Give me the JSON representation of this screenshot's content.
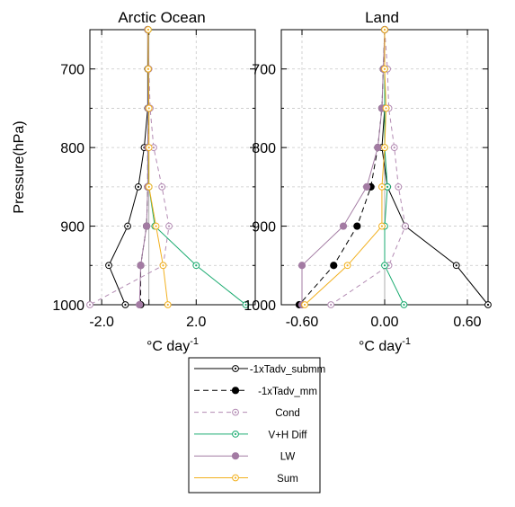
{
  "figure": {
    "ylabel": "Pressure(hPa)",
    "xlabel_base": "°C day",
    "xlabel_sup": "-1"
  },
  "chart_data": [
    {
      "type": "line",
      "title": "Arctic Ocean",
      "ylabel": "Pressure(hPa)",
      "xlabel": "°C day⁻¹",
      "y_inverted": true,
      "ylim": [
        1000,
        650
      ],
      "xlim": [
        -2.5,
        4.5
      ],
      "x_ticks": [
        -2.0,
        0.0,
        2.0
      ],
      "x_tick_labels": [
        "-2.0",
        "",
        "2.0"
      ],
      "y_ticks": [
        700,
        800,
        900,
        1000
      ],
      "y_tick_labels": [
        "700",
        "800",
        "900",
        "1000"
      ],
      "grid": true,
      "pressure": [
        650,
        700,
        750,
        800,
        850,
        900,
        950,
        1000
      ],
      "series": [
        {
          "name": "-1xTadv_submm",
          "x": [
            -0.05,
            -0.05,
            -0.05,
            -0.2,
            -0.45,
            -0.9,
            -1.7,
            -1.0
          ]
        },
        {
          "name": "-1xTadv_mm",
          "x": [
            -0.05,
            -0.03,
            -0.02,
            -0.05,
            -0.05,
            -0.1,
            -0.35,
            -0.35
          ]
        },
        {
          "name": "Cond",
          "x": [
            -0.03,
            0.0,
            0.05,
            0.2,
            0.55,
            0.85,
            0.6,
            -2.5
          ]
        },
        {
          "name": "V+H Diff",
          "x": [
            -0.03,
            -0.03,
            -0.03,
            -0.05,
            0.0,
            0.25,
            2.0,
            4.1
          ]
        },
        {
          "name": "LW",
          "x": [
            -0.05,
            -0.03,
            -0.03,
            -0.05,
            -0.05,
            -0.1,
            -0.35,
            -0.4
          ]
        },
        {
          "name": "Sum",
          "x": [
            -0.03,
            -0.03,
            0.0,
            0.0,
            0.0,
            0.3,
            0.6,
            0.8
          ]
        }
      ]
    },
    {
      "type": "line",
      "title": "Land",
      "ylabel": "",
      "xlabel": "°C day⁻¹",
      "y_inverted": true,
      "ylim": [
        1000,
        650
      ],
      "xlim": [
        -0.75,
        0.75
      ],
      "x_ticks": [
        -0.6,
        0.0,
        0.6
      ],
      "x_tick_labels": [
        "-0.60",
        "0.00",
        "0.60"
      ],
      "y_ticks": [
        700,
        800,
        900,
        1000
      ],
      "y_tick_labels": [
        "700",
        "800",
        "900",
        "1000"
      ],
      "grid": true,
      "pressure": [
        650,
        700,
        750,
        800,
        850,
        900,
        950,
        1000
      ],
      "series": [
        {
          "name": "-1xTadv_submm",
          "x": [
            0.0,
            0.0,
            0.0,
            -0.02,
            0.02,
            0.15,
            0.52,
            0.75
          ]
        },
        {
          "name": "-1xTadv_mm",
          "x": [
            0.0,
            -0.01,
            -0.02,
            -0.05,
            -0.1,
            -0.2,
            -0.37,
            -0.62
          ]
        },
        {
          "name": "Cond",
          "x": [
            0.0,
            0.02,
            0.03,
            0.07,
            0.1,
            0.15,
            0.03,
            -0.39
          ]
        },
        {
          "name": "V+H Diff",
          "x": [
            0.0,
            0.0,
            0.0,
            0.0,
            0.02,
            0.0,
            0.0,
            0.14
          ]
        },
        {
          "name": "LW",
          "x": [
            0.0,
            -0.01,
            -0.02,
            -0.05,
            -0.13,
            -0.3,
            -0.6,
            -0.6
          ]
        },
        {
          "name": "Sum",
          "x": [
            0.0,
            0.0,
            0.01,
            0.0,
            -0.02,
            -0.02,
            -0.27,
            -0.58
          ]
        }
      ]
    }
  ],
  "series_styles": [
    {
      "name": "-1xTadv_submm",
      "color": "#000000",
      "dash": "",
      "marker": "open-dot"
    },
    {
      "name": "-1xTadv_mm",
      "color": "#000000",
      "dash": "6,4",
      "marker": "filled"
    },
    {
      "name": "Cond",
      "color": "#b38bb3",
      "dash": "5,4",
      "marker": "open-dot"
    },
    {
      "name": "V+H Diff",
      "color": "#1aab70",
      "dash": "",
      "marker": "open-dot"
    },
    {
      "name": "LW",
      "color": "#a37ba3",
      "dash": "",
      "marker": "filled"
    },
    {
      "name": "Sum",
      "color": "#f2b01e",
      "dash": "",
      "marker": "open-dot"
    }
  ],
  "legend": {
    "placement": "bottom-center",
    "entries": [
      "-1xTadv_submm",
      "-1xTadv_mm",
      "Cond",
      "V+H Diff",
      "LW",
      "Sum"
    ]
  }
}
